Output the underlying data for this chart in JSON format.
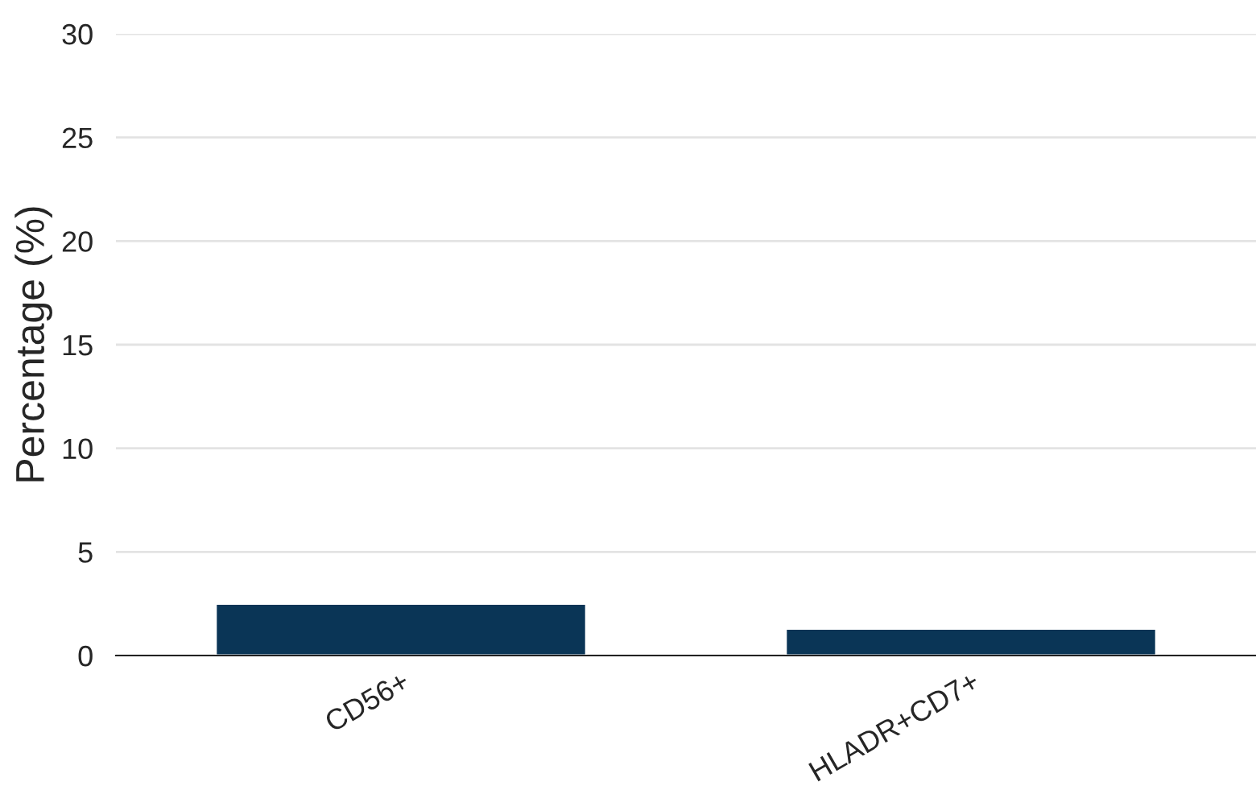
{
  "chart_data": {
    "type": "bar",
    "ylabel": "Percentage (%)",
    "categories": [
      "CD56+",
      "HLADR+CD7+"
    ],
    "values": [
      2.5,
      1.3
    ],
    "color": "#0a3556",
    "ylim": [
      0,
      30
    ],
    "yticks": [
      0,
      5,
      10,
      15,
      20,
      25,
      30
    ],
    "grid": "y",
    "legend": false
  }
}
